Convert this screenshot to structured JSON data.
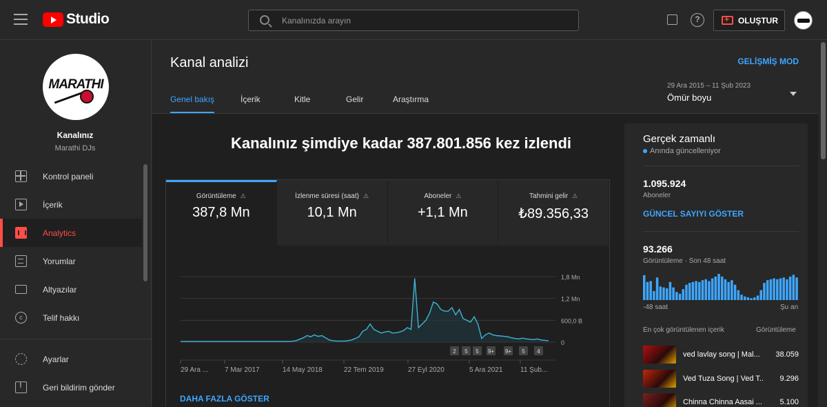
{
  "topbar": {
    "logo_text": "Studio",
    "search_placeholder": "Kanalınızda arayın",
    "create_label": "OLUŞTUR"
  },
  "sidebar": {
    "channel_label": "Kanalınız",
    "channel_name": "Marathi DJs",
    "avatar_logo_text": "MARATHI",
    "items": [
      {
        "label": "Kontrol paneli",
        "icon": "dashboard-icon"
      },
      {
        "label": "İçerik",
        "icon": "content-icon"
      },
      {
        "label": "Analytics",
        "icon": "analytics-icon",
        "active": true
      },
      {
        "label": "Yorumlar",
        "icon": "comments-icon"
      },
      {
        "label": "Altyazılar",
        "icon": "subtitles-icon"
      },
      {
        "label": "Telif hakkı",
        "icon": "copyright-icon"
      }
    ],
    "bottom_items": [
      {
        "label": "Ayarlar",
        "icon": "gear-icon"
      },
      {
        "label": "Geri bildirim gönder",
        "icon": "feedback-icon"
      }
    ]
  },
  "header": {
    "title": "Kanal analizi",
    "advanced_mode": "GELİŞMİŞ MOD",
    "tabs": [
      "Genel bakış",
      "İçerik",
      "Kitle",
      "Gelir",
      "Araştırma"
    ],
    "date_range": "29 Ara 2015 – 11 Şub 2023",
    "date_label": "Ömür boyu"
  },
  "main": {
    "headline": "Kanalınız şimdiye kadar 387.801.856 kez izlendi",
    "metrics": [
      {
        "label": "Görüntüleme",
        "value": "387,8 Mn"
      },
      {
        "label": "İzlenme süresi (saat)",
        "value": "10,1 Mn"
      },
      {
        "label": "Aboneler",
        "value": "+1,1 Mn"
      },
      {
        "label": "Tahmini gelir",
        "value": "₺89.356,33"
      }
    ],
    "show_more": "DAHA FAZLA GÖSTER"
  },
  "chart_data": {
    "type": "area",
    "ytick_labels": [
      "0",
      "600,0 B",
      "1,2 Mn",
      "1,8 Mn"
    ],
    "y_values": [
      0,
      600000,
      1200000,
      1800000
    ],
    "xtick_labels": [
      "29 Ara ...",
      "7 Mar 2017",
      "14 May 2018",
      "22 Tem 2019",
      "27 Eyl 2020",
      "5 Ara 2021",
      "11 Şub..."
    ],
    "ylim": [
      0,
      1800000
    ],
    "series_values": [
      20000,
      20000,
      20000,
      20000,
      20000,
      20000,
      20000,
      20000,
      20000,
      20000,
      20000,
      20000,
      20000,
      20000,
      20000,
      20000,
      20000,
      20000,
      20000,
      20000,
      20000,
      20000,
      20000,
      20000,
      20000,
      20000,
      20000,
      20000,
      20000,
      20000,
      25000,
      40000,
      80000,
      120000,
      180000,
      150000,
      200000,
      160000,
      180000,
      120000,
      60000,
      40000,
      30000,
      30000,
      30000,
      40000,
      60000,
      100000,
      150000,
      300000,
      350000,
      500000,
      350000,
      300000,
      250000,
      280000,
      300000,
      250000,
      260000,
      280000,
      320000,
      400000,
      350000,
      1750000,
      400000,
      500000,
      600000,
      800000,
      1100000,
      1050000,
      900000,
      850000,
      850000,
      950000,
      750000,
      900000,
      650000,
      600000,
      550000,
      700000,
      500000,
      100000,
      200000,
      250000,
      200000,
      180000,
      170000,
      160000,
      150000,
      120000,
      100000,
      90000,
      110000,
      90000,
      80000,
      70000,
      90000,
      60000,
      50000,
      40000
    ],
    "markers": [
      "2",
      "5",
      "5",
      "9+",
      "9+",
      "5",
      "4"
    ]
  },
  "realtime": {
    "title": "Gerçek zamanlı",
    "subtitle": "Anında güncelleniyor",
    "subscribers": "1.095.924",
    "subscribers_label": "Aboneler",
    "show_count": "GÜNCEL SAYIYI GÖSTER",
    "views": "93.266",
    "views_label": "Görüntüleme · Son 48 saat",
    "axis_left": "-48 saat",
    "axis_right": "Şu an",
    "hourly_bars": [
      55,
      40,
      42,
      20,
      50,
      30,
      28,
      26,
      40,
      28,
      18,
      14,
      24,
      34,
      38,
      40,
      42,
      40,
      44,
      46,
      42,
      48,
      52,
      58,
      52,
      46,
      40,
      44,
      34,
      22,
      12,
      8,
      6,
      4,
      6,
      10,
      22,
      38,
      44,
      46,
      48,
      46,
      48,
      50,
      46,
      52,
      56,
      50
    ],
    "top_content_title": "En çok görüntülenen içerik",
    "top_content_col": "Görüntüleme",
    "videos": [
      {
        "title": "ved lavlay song | Mal...",
        "views": "38.059",
        "thumb_color": "#b01010"
      },
      {
        "title": "Ved Tuza Song | Ved T...",
        "views": "9.296",
        "thumb_color": "#c2260b"
      },
      {
        "title": "Chinna Chinna Aasai ...",
        "views": "5.100",
        "thumb_color": "#7a2020"
      }
    ]
  },
  "colors": {
    "accent": "#3ea6ff",
    "brand": "#ff0000",
    "active_nav": "#ff4e45",
    "chart_line": "#41b4d8"
  }
}
